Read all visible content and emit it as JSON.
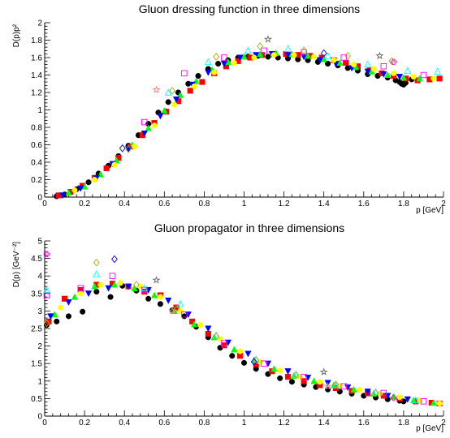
{
  "chart_data": [
    {
      "type": "scatter",
      "title": "Gluon dressing function in three dimensions",
      "xlabel": "p [GeV]",
      "ylabel": "D(p)p²",
      "xlim": [
        0,
        2
      ],
      "ylim": [
        0,
        2
      ],
      "xticks": [
        "0",
        "0.2",
        "0.4",
        "0.6",
        "0.8",
        "1",
        "1.2",
        "1.4",
        "1.6",
        "1.8",
        "2"
      ],
      "yticks": [
        "0",
        "0.2",
        "0.4",
        "0.6",
        "0.8",
        "1",
        "1.2",
        "1.4",
        "1.6",
        "1.8",
        "2"
      ],
      "grid": false,
      "series": [
        {
          "marker": "circle-filled",
          "color": "#000000",
          "x": [
            0.06,
            0.1,
            0.16,
            0.22,
            0.27,
            0.32,
            0.37,
            0.42,
            0.47,
            0.52,
            0.57,
            0.62,
            0.67,
            0.72,
            0.77,
            0.82,
            0.87,
            0.92,
            0.97,
            1.02,
            1.07,
            1.12,
            1.17,
            1.22,
            1.27,
            1.32,
            1.37,
            1.42,
            1.47,
            1.52,
            1.57,
            1.62,
            1.67,
            1.72,
            1.76,
            1.78,
            1.79,
            1.8,
            1.81,
            1.84
          ],
          "y": [
            0.01,
            0.03,
            0.09,
            0.17,
            0.27,
            0.36,
            0.47,
            0.59,
            0.71,
            0.84,
            0.97,
            1.09,
            1.2,
            1.3,
            1.39,
            1.47,
            1.53,
            1.57,
            1.6,
            1.61,
            1.62,
            1.61,
            1.6,
            1.59,
            1.58,
            1.57,
            1.55,
            1.53,
            1.51,
            1.48,
            1.45,
            1.41,
            1.39,
            1.37,
            1.34,
            1.32,
            1.3,
            1.29,
            1.31,
            1.35
          ]
        },
        {
          "marker": "square-filled",
          "color": "#ff0000",
          "x": [
            0.07,
            0.13,
            0.19,
            0.25,
            0.31,
            0.37,
            0.43,
            0.49,
            0.55,
            0.61,
            0.67,
            0.73,
            0.79,
            0.85,
            0.91,
            0.97,
            1.03,
            1.09,
            1.15,
            1.21,
            1.27,
            1.33,
            1.39,
            1.45,
            1.51,
            1.57,
            1.63,
            1.69,
            1.75,
            1.81,
            1.87,
            1.93,
            1.98
          ],
          "y": [
            0.02,
            0.06,
            0.13,
            0.22,
            0.33,
            0.45,
            0.58,
            0.71,
            0.85,
            0.98,
            1.1,
            1.22,
            1.32,
            1.42,
            1.5,
            1.56,
            1.6,
            1.63,
            1.64,
            1.64,
            1.63,
            1.62,
            1.6,
            1.57,
            1.54,
            1.5,
            1.46,
            1.42,
            1.39,
            1.36,
            1.34,
            1.35,
            1.36
          ]
        },
        {
          "marker": "triangle-up-filled",
          "color": "#00ff00",
          "x": [
            0.12,
            0.2,
            0.28,
            0.36,
            0.44,
            0.52,
            0.6,
            0.68,
            0.76,
            0.84,
            0.92,
            1.0,
            1.08,
            1.16,
            1.24,
            1.32,
            1.4,
            1.48,
            1.56,
            1.64,
            1.72,
            1.8,
            1.88
          ],
          "y": [
            0.05,
            0.12,
            0.26,
            0.42,
            0.6,
            0.79,
            0.99,
            1.17,
            1.33,
            1.46,
            1.55,
            1.61,
            1.64,
            1.65,
            1.64,
            1.62,
            1.58,
            1.54,
            1.49,
            1.44,
            1.4,
            1.37,
            1.36
          ]
        },
        {
          "marker": "triangle-down-filled",
          "color": "#0000ff",
          "x": [
            0.09,
            0.18,
            0.26,
            0.34,
            0.42,
            0.5,
            0.58,
            0.66,
            0.74,
            0.82,
            0.9,
            0.98,
            1.06,
            1.14,
            1.22,
            1.3,
            1.38,
            1.46,
            1.54,
            1.62,
            1.7,
            1.78
          ],
          "y": [
            0.02,
            0.1,
            0.22,
            0.38,
            0.55,
            0.73,
            0.93,
            1.12,
            1.29,
            1.43,
            1.53,
            1.6,
            1.63,
            1.64,
            1.63,
            1.61,
            1.57,
            1.53,
            1.48,
            1.44,
            1.41,
            1.38
          ]
        },
        {
          "marker": "circle-filled",
          "color": "#ffff00",
          "x": [
            0.15,
            0.25,
            0.35,
            0.45,
            0.55,
            0.65,
            0.75,
            0.85,
            0.95,
            1.05,
            1.15,
            1.25,
            1.35,
            1.45,
            1.55,
            1.65,
            1.75,
            1.85,
            1.95
          ],
          "y": [
            0.08,
            0.2,
            0.37,
            0.58,
            0.82,
            1.06,
            1.27,
            1.43,
            1.54,
            1.6,
            1.63,
            1.63,
            1.61,
            1.57,
            1.52,
            1.47,
            1.42,
            1.38,
            1.36
          ]
        },
        {
          "marker": "square-open",
          "color": "#ff00ff",
          "x": [
            0.5,
            0.7,
            0.9,
            1.1,
            1.3,
            1.5,
            1.7,
            1.9
          ],
          "y": [
            0.86,
            1.42,
            1.6,
            1.68,
            1.66,
            1.6,
            1.5,
            1.4
          ]
        },
        {
          "marker": "triangle-up-open",
          "color": "#00ffff",
          "x": [
            0.62,
            0.82,
            1.02,
            1.22,
            1.42,
            1.62,
            1.82,
            1.97
          ],
          "y": [
            1.2,
            1.55,
            1.68,
            1.7,
            1.62,
            1.52,
            1.45,
            1.44
          ]
        },
        {
          "marker": "diamond-open",
          "color": "#aaaa00",
          "x": [
            0.42,
            0.64,
            0.86,
            1.08,
            1.3,
            1.52,
            1.74
          ],
          "y": [
            0.55,
            1.22,
            1.61,
            1.73,
            1.68,
            1.62,
            1.56
          ]
        },
        {
          "marker": "diamond-open",
          "color": "#0000ff",
          "x": [
            0.39,
            1.4
          ],
          "y": [
            0.56,
            1.65
          ]
        },
        {
          "marker": "cross-open",
          "color": "#ff00ff",
          "x": [
            1.75
          ],
          "y": [
            1.55
          ]
        },
        {
          "marker": "star-open",
          "color": "#ff8080",
          "x": [
            0.56
          ],
          "y": [
            1.23
          ]
        },
        {
          "marker": "star-open",
          "color": "#666666",
          "x": [
            1.12,
            1.68
          ],
          "y": [
            1.81,
            1.62
          ]
        }
      ]
    },
    {
      "type": "scatter",
      "title": "Gluon propagator in three dimensions",
      "xlabel": "p [GeV]",
      "ylabel": "D(p) [GeV⁻²]",
      "xlim": [
        0,
        2
      ],
      "ylim": [
        0,
        5
      ],
      "xticks": [
        "0",
        "0.2",
        "0.4",
        "0.6",
        "0.8",
        "1",
        "1.2",
        "1.4",
        "1.6",
        "1.8",
        "2"
      ],
      "yticks": [
        "0",
        "0.5",
        "1",
        "1.5",
        "2",
        "2.5",
        "3",
        "3.5",
        "4",
        "4.5",
        "5"
      ],
      "grid": false,
      "series": [
        {
          "marker": "circle-filled",
          "color": "#000000",
          "x": [
            0.01,
            0.06,
            0.12,
            0.19,
            0.26,
            0.33,
            0.39,
            0.46,
            0.52,
            0.58,
            0.64,
            0.7,
            0.76,
            0.82,
            0.88,
            0.94,
            1.0,
            1.06,
            1.12,
            1.18,
            1.24,
            1.3,
            1.36,
            1.42,
            1.48,
            1.54,
            1.6,
            1.66,
            1.72,
            1.78,
            1.8
          ],
          "y": [
            2.6,
            2.7,
            2.85,
            2.98,
            3.55,
            3.4,
            3.72,
            3.58,
            3.35,
            3.2,
            3.02,
            2.85,
            2.55,
            2.25,
            1.95,
            1.72,
            1.52,
            1.35,
            1.2,
            1.08,
            0.98,
            0.9,
            0.83,
            0.76,
            0.7,
            0.64,
            0.58,
            0.53,
            0.48,
            0.44,
            0.42
          ]
        },
        {
          "marker": "square-filled",
          "color": "#ff0000",
          "x": [
            0.02,
            0.1,
            0.18,
            0.26,
            0.34,
            0.42,
            0.5,
            0.58,
            0.66,
            0.74,
            0.82,
            0.9,
            0.98,
            1.06,
            1.14,
            1.22,
            1.3,
            1.38,
            1.46,
            1.54,
            1.62,
            1.7,
            1.78,
            1.86,
            1.94,
            1.98
          ],
          "y": [
            2.7,
            3.35,
            3.6,
            3.75,
            3.78,
            3.7,
            3.55,
            3.45,
            3.1,
            2.7,
            2.35,
            2.02,
            1.72,
            1.48,
            1.28,
            1.12,
            1.0,
            0.88,
            0.8,
            0.72,
            0.65,
            0.58,
            0.5,
            0.42,
            0.38,
            0.36
          ]
        },
        {
          "marker": "triangle-up-filled",
          "color": "#00ff00",
          "x": [
            0.05,
            0.15,
            0.25,
            0.35,
            0.45,
            0.55,
            0.65,
            0.75,
            0.85,
            0.95,
            1.05,
            1.15,
            1.25,
            1.35,
            1.45,
            1.55,
            1.65,
            1.75,
            1.85,
            1.95
          ],
          "y": [
            2.9,
            3.4,
            3.7,
            3.75,
            3.65,
            3.45,
            3.0,
            2.62,
            2.25,
            1.9,
            1.6,
            1.35,
            1.15,
            1.0,
            0.88,
            0.76,
            0.64,
            0.55,
            0.45,
            0.38
          ]
        },
        {
          "marker": "triangle-down-filled",
          "color": "#0000ff",
          "x": [
            0.03,
            0.12,
            0.22,
            0.32,
            0.42,
            0.52,
            0.62,
            0.72,
            0.82,
            0.92,
            1.02,
            1.12,
            1.22,
            1.32,
            1.42,
            1.52,
            1.62,
            1.72,
            1.82
          ],
          "y": [
            2.85,
            3.25,
            3.5,
            3.65,
            3.7,
            3.6,
            3.3,
            2.9,
            2.5,
            2.1,
            1.78,
            1.5,
            1.28,
            1.1,
            0.95,
            0.82,
            0.7,
            0.58,
            0.48
          ]
        },
        {
          "marker": "circle-filled",
          "color": "#ffff00",
          "x": [
            0.08,
            0.18,
            0.28,
            0.38,
            0.48,
            0.58,
            0.68,
            0.78,
            0.88,
            0.98,
            1.08,
            1.18,
            1.28,
            1.38,
            1.48,
            1.58,
            1.68,
            1.78,
            1.88,
            1.98
          ],
          "y": [
            3.1,
            3.5,
            3.75,
            3.8,
            3.7,
            3.4,
            3.0,
            2.6,
            2.2,
            1.85,
            1.55,
            1.3,
            1.12,
            0.98,
            0.86,
            0.75,
            0.64,
            0.54,
            0.44,
            0.36
          ]
        },
        {
          "marker": "square-open",
          "color": "#ff00ff",
          "x": [
            0.01,
            0.18,
            0.34,
            0.5,
            0.7,
            0.9,
            1.1,
            1.3,
            1.5,
            1.7,
            1.9
          ],
          "y": [
            3.45,
            3.65,
            4.0,
            3.6,
            2.9,
            2.08,
            1.5,
            1.12,
            0.85,
            0.66,
            0.42
          ]
        },
        {
          "marker": "triangle-up-open",
          "color": "#00ffff",
          "x": [
            0.01,
            0.26,
            0.5,
            0.68,
            0.86,
            1.06,
            1.26,
            1.46,
            1.66,
            1.86
          ],
          "y": [
            3.6,
            4.05,
            3.65,
            3.2,
            2.3,
            1.62,
            1.18,
            0.88,
            0.68,
            0.45
          ]
        },
        {
          "marker": "diamond-open",
          "color": "#aaaa00",
          "x": [
            0.01,
            0.26,
            0.46,
            0.66,
            0.86,
            1.06,
            1.26,
            1.46,
            1.66
          ],
          "y": [
            2.65,
            4.38,
            3.75,
            3.05,
            2.28,
            1.6,
            1.18,
            0.9,
            0.66
          ]
        },
        {
          "marker": "diamond-open",
          "color": "#0000ff",
          "x": [
            0.35,
            1.05
          ],
          "y": [
            4.48,
            1.55
          ]
        },
        {
          "marker": "cross-open",
          "color": "#ff00ff",
          "x": [
            0.01,
            1.75
          ],
          "y": [
            4.62,
            0.52
          ]
        },
        {
          "marker": "star-open",
          "color": "#ff8080",
          "x": [
            0.64,
            1.42
          ],
          "y": [
            3.0,
            0.85
          ]
        },
        {
          "marker": "star-open",
          "color": "#666666",
          "x": [
            0.56,
            1.4
          ],
          "y": [
            3.88,
            1.26
          ]
        }
      ]
    }
  ]
}
